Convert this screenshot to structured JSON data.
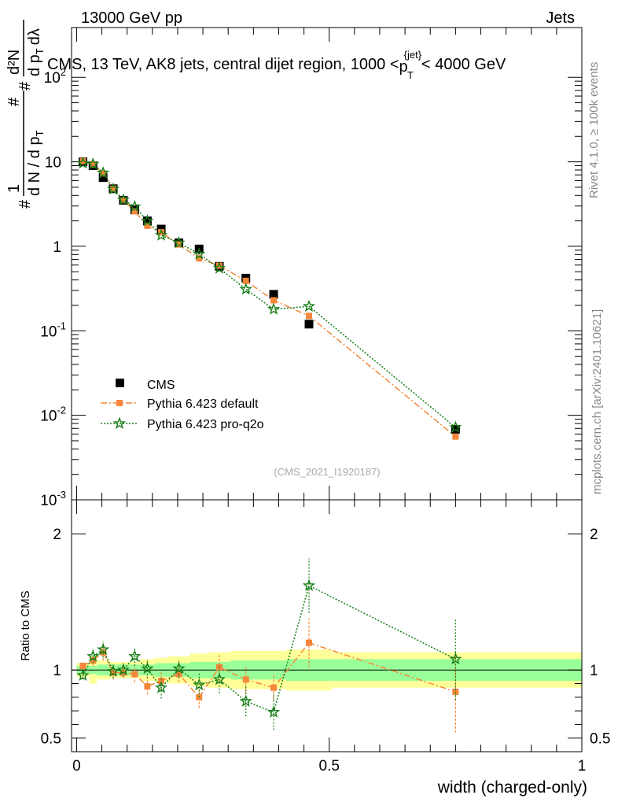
{
  "header": {
    "left": "13000 GeV pp",
    "right": "Jets"
  },
  "side_text": {
    "rivet": "Rivet 4.1.0, ≥ 100k events",
    "mcplots": "mcplots.cern.ch [arXiv:2401.10621]"
  },
  "colors": {
    "cms": "#000000",
    "default": "#f5873a",
    "proq2o": "#157d15",
    "band_inner": "#99ff99",
    "band_outer": "#ffff99"
  },
  "chart_data": [
    {
      "type": "scatter",
      "panel": "main",
      "title": "CMS, 13 TeV, AK8 jets, central dijet region, 1000 <",
      "title_p": "p",
      "title_sub": "T",
      "title_sup": "{jet}",
      "title_end": "< 4000 GeV",
      "ylabel": "dN / dp_T d lambda normalized",
      "ylabel_parts": {
        "one": "1",
        "hash": "#",
        "dn": "d N / d p",
        "t": "T",
        "d2n": "d²N",
        "dpt": "d p",
        "dl": "dλ"
      },
      "yscale": "log",
      "ylim": [
        0.001,
        300
      ],
      "xlim": [
        -0.01,
        1.0
      ],
      "y_ticks": [
        {
          "value": 0.001,
          "label": "10",
          "exp": "-3"
        },
        {
          "value": 0.01,
          "label": "10",
          "exp": "-2"
        },
        {
          "value": 0.1,
          "label": "10",
          "exp": "-1"
        },
        {
          "value": 1,
          "label": "1",
          "exp": ""
        },
        {
          "value": 10,
          "label": "10",
          "exp": ""
        },
        {
          "value": 100,
          "label": "10",
          "exp": "2"
        }
      ],
      "watermark": "(CMS_2021_I1920187)",
      "legend": [
        "CMS",
        "Pythia 6.423 default",
        "Pythia 6.423 pro-q2o"
      ],
      "x": [
        0.0125,
        0.0325,
        0.0525,
        0.0725,
        0.0925,
        0.115,
        0.14,
        0.1675,
        0.2025,
        0.2425,
        0.2825,
        0.335,
        0.39,
        0.46,
        0.75
      ],
      "series": [
        {
          "name": "CMS",
          "values": [
            10.0,
            9.0,
            6.5,
            4.8,
            3.5,
            2.7,
            2.0,
            1.6,
            1.1,
            0.93,
            0.58,
            0.42,
            0.27,
            0.12,
            0.0068
          ]
        },
        {
          "name": "Pythia 6.423 default",
          "values": [
            10.2,
            9.3,
            7.3,
            4.8,
            3.5,
            2.6,
            1.75,
            1.47,
            1.05,
            0.72,
            0.59,
            0.39,
            0.23,
            0.15,
            0.0056
          ]
        },
        {
          "name": "Pythia 6.423 pro-q2o",
          "values": [
            9.6,
            9.4,
            7.4,
            4.75,
            3.55,
            2.95,
            2.0,
            1.35,
            1.1,
            0.81,
            0.55,
            0.31,
            0.18,
            0.195,
            0.0072
          ]
        }
      ]
    },
    {
      "type": "scatter",
      "panel": "ratio",
      "ylabel": "Ratio to CMS",
      "ylim": [
        0.4,
        2.25
      ],
      "xlim": [
        -0.01,
        1.0
      ],
      "xlabel": "width (charged-only)",
      "y_ticks": [
        0.5,
        1,
        2
      ],
      "x_ticks": [
        0,
        0.5,
        1
      ],
      "bins": [
        [
          0.0,
          0.025
        ],
        [
          0.025,
          0.04
        ],
        [
          0.04,
          0.065
        ],
        [
          0.065,
          0.08
        ],
        [
          0.08,
          0.105
        ],
        [
          0.105,
          0.125
        ],
        [
          0.125,
          0.155
        ],
        [
          0.155,
          0.18
        ],
        [
          0.18,
          0.225
        ],
        [
          0.225,
          0.26
        ],
        [
          0.26,
          0.305
        ],
        [
          0.305,
          0.365
        ],
        [
          0.365,
          0.415
        ],
        [
          0.415,
          0.505
        ],
        [
          0.505,
          1.0
        ]
      ],
      "band_inner": [
        0.03,
        0.03,
        0.04,
        0.04,
        0.04,
        0.04,
        0.04,
        0.05,
        0.05,
        0.06,
        0.06,
        0.07,
        0.07,
        0.08,
        0.08
      ],
      "band_outer": [
        0.05,
        0.1,
        0.07,
        0.06,
        0.06,
        0.06,
        0.08,
        0.09,
        0.1,
        0.12,
        0.13,
        0.14,
        0.14,
        0.15,
        0.13
      ],
      "x": [
        0.0125,
        0.0325,
        0.0525,
        0.0725,
        0.0925,
        0.115,
        0.14,
        0.1675,
        0.2025,
        0.2425,
        0.2825,
        0.335,
        0.39,
        0.46,
        0.75
      ],
      "series": [
        {
          "name": "Pythia 6.423 default",
          "values": [
            1.03,
            1.07,
            1.13,
            0.98,
            0.98,
            0.97,
            0.88,
            0.92,
            0.97,
            0.8,
            1.02,
            0.93,
            0.87,
            1.2,
            0.84
          ],
          "errors": [
            0.03,
            0.04,
            0.06,
            0.05,
            0.04,
            0.06,
            0.06,
            0.07,
            0.06,
            0.08,
            0.1,
            0.1,
            0.1,
            0.18,
            0.3
          ]
        },
        {
          "name": "Pythia 6.423 pro-q2o",
          "values": [
            0.96,
            1.1,
            1.15,
            0.99,
            1.0,
            1.1,
            1.01,
            0.87,
            1.01,
            0.89,
            0.93,
            0.77,
            0.69,
            1.62,
            1.08
          ],
          "errors": [
            0.03,
            0.05,
            0.06,
            0.05,
            0.05,
            0.07,
            0.07,
            0.08,
            0.07,
            0.09,
            0.1,
            0.11,
            0.13,
            0.2,
            0.3
          ]
        }
      ]
    }
  ]
}
